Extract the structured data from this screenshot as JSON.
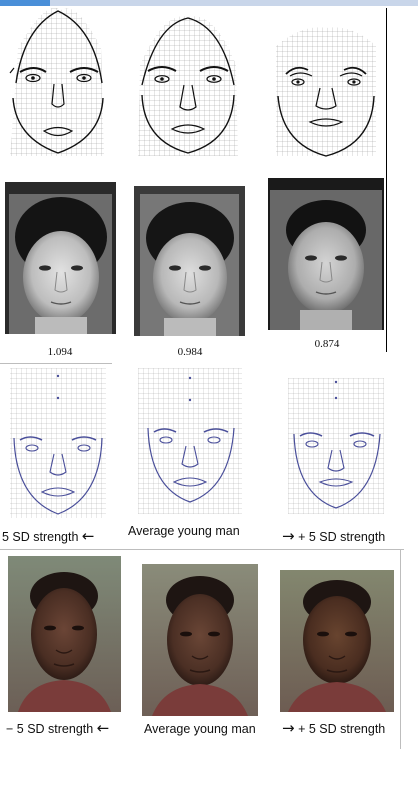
{
  "row2_values": [
    "1.094",
    "0.984",
    "0.874"
  ],
  "row3_captions": {
    "left": "5 SD strength",
    "middle": "Average young man",
    "right": "+ 5 SD strength"
  },
  "row5_captions": {
    "left": "− 5 SD strength",
    "middle": "Average young man",
    "right": "+ 5 SD strength"
  },
  "arrow_left": "←",
  "arrow_right": "→",
  "colors": {
    "grid_line": "#8a8a8a",
    "outline": "#111111",
    "blue_outline": "#4a4f9a",
    "skin_dark": "#5a3a2e",
    "bw_face": "#c8c8c8"
  },
  "icons": [
    "arrow-left-icon",
    "arrow-right-icon"
  ]
}
